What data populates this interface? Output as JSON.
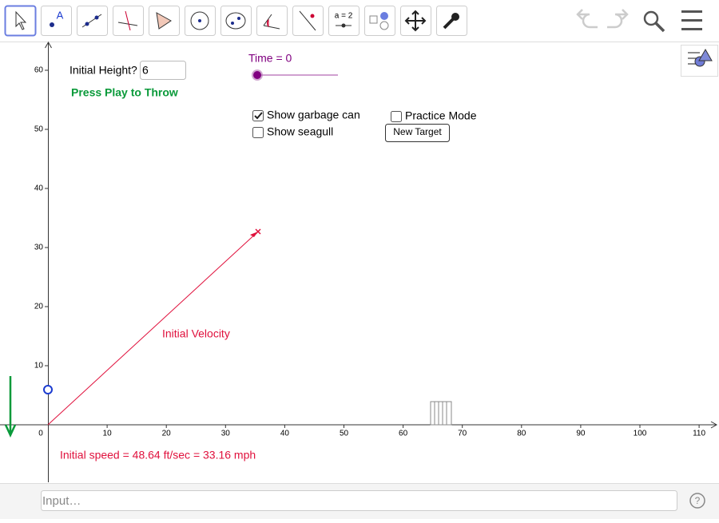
{
  "toolbar": {
    "slider_tool_label": "a = 2"
  },
  "graphics": {
    "initial_height_label": "Initial Height?",
    "initial_height_value": "6",
    "press_play": "Press Play to Throw",
    "time_label": "Time = 0",
    "checkboxes": [
      {
        "label": "Show garbage can",
        "checked": true
      },
      {
        "label": "Show seagull",
        "checked": false
      },
      {
        "label": "Practice Mode",
        "checked": false
      }
    ],
    "new_target_button": "New Target",
    "vector_label": "Initial Velocity",
    "speed_text": "Initial speed = 48.64 ft/sec = 33.16 mph",
    "axes": {
      "xticks": [
        0,
        10,
        20,
        30,
        40,
        50,
        60,
        70,
        80,
        90,
        100,
        110
      ],
      "yticks": [
        10,
        20,
        30,
        40,
        50,
        60
      ]
    }
  },
  "input_bar": {
    "placeholder": "Input…"
  }
}
